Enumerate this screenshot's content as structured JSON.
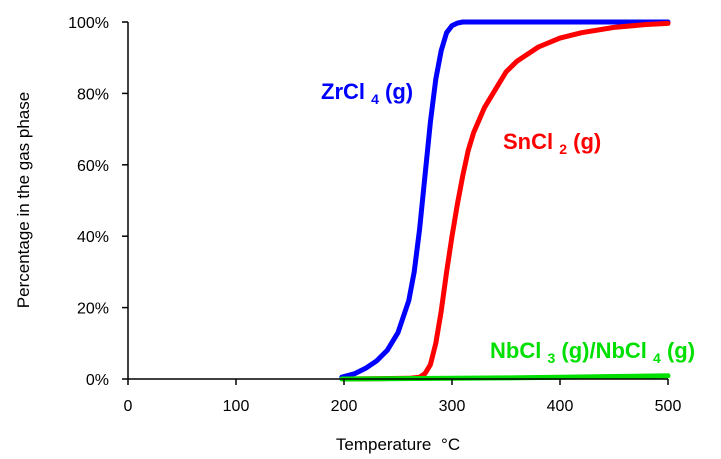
{
  "chart_data": {
    "type": "line",
    "xlabel": "Temperature",
    "xlabel_unit": "°C",
    "ylabel": "Percentage in the gas phase",
    "xlim": [
      0,
      500
    ],
    "ylim": [
      0,
      100
    ],
    "x_ticks": [
      0,
      100,
      200,
      300,
      400,
      500
    ],
    "x_tick_labels": [
      "0",
      "100",
      "200",
      "300",
      "400",
      "500"
    ],
    "y_ticks": [
      0,
      20,
      40,
      60,
      80,
      100
    ],
    "y_tick_labels": [
      "0%",
      "20%",
      "40%",
      "60%",
      "80%",
      "100%"
    ],
    "grid": false,
    "legend": "none",
    "series": [
      {
        "name": "ZrCl4(g)",
        "label_main": "ZrCl",
        "label_sub": "4",
        "label_tail": "(g)",
        "color": "#0000ff",
        "x": [
          198,
          210,
          220,
          230,
          240,
          250,
          260,
          265,
          270,
          275,
          280,
          285,
          290,
          295,
          300,
          305,
          310,
          320,
          350,
          400,
          450,
          500
        ],
        "y": [
          0.5,
          1.5,
          3,
          5,
          8,
          13,
          22,
          30,
          42,
          57,
          72,
          84,
          92,
          97,
          99,
          99.7,
          100,
          100,
          100,
          100,
          100,
          100
        ]
      },
      {
        "name": "SnCl2(g)",
        "label_main": "SnCl",
        "label_sub": "2",
        "label_tail": "(g)",
        "color": "#ff0000",
        "x": [
          200,
          260,
          270,
          275,
          280,
          285,
          290,
          295,
          300,
          305,
          310,
          315,
          320,
          330,
          340,
          350,
          360,
          380,
          400,
          420,
          450,
          480,
          500
        ],
        "y": [
          0,
          0.2,
          0.5,
          1.5,
          4,
          10,
          19,
          30,
          40,
          49,
          57,
          64,
          69,
          76,
          81,
          86,
          89,
          93,
          95.5,
          97,
          98.5,
          99.3,
          99.6
        ]
      },
      {
        "name": "NbCl3(g)/NbCl4(g)",
        "label_main": "NbCl",
        "label_sub": "3",
        "label_mid": "(g)/NbCl",
        "label_sub2": "4",
        "label_tail": "(g)",
        "color": "#00e000",
        "x": [
          198,
          250,
          300,
          350,
          400,
          450,
          500
        ],
        "y": [
          0,
          0.1,
          0.2,
          0.3,
          0.5,
          0.7,
          0.9
        ]
      }
    ]
  }
}
